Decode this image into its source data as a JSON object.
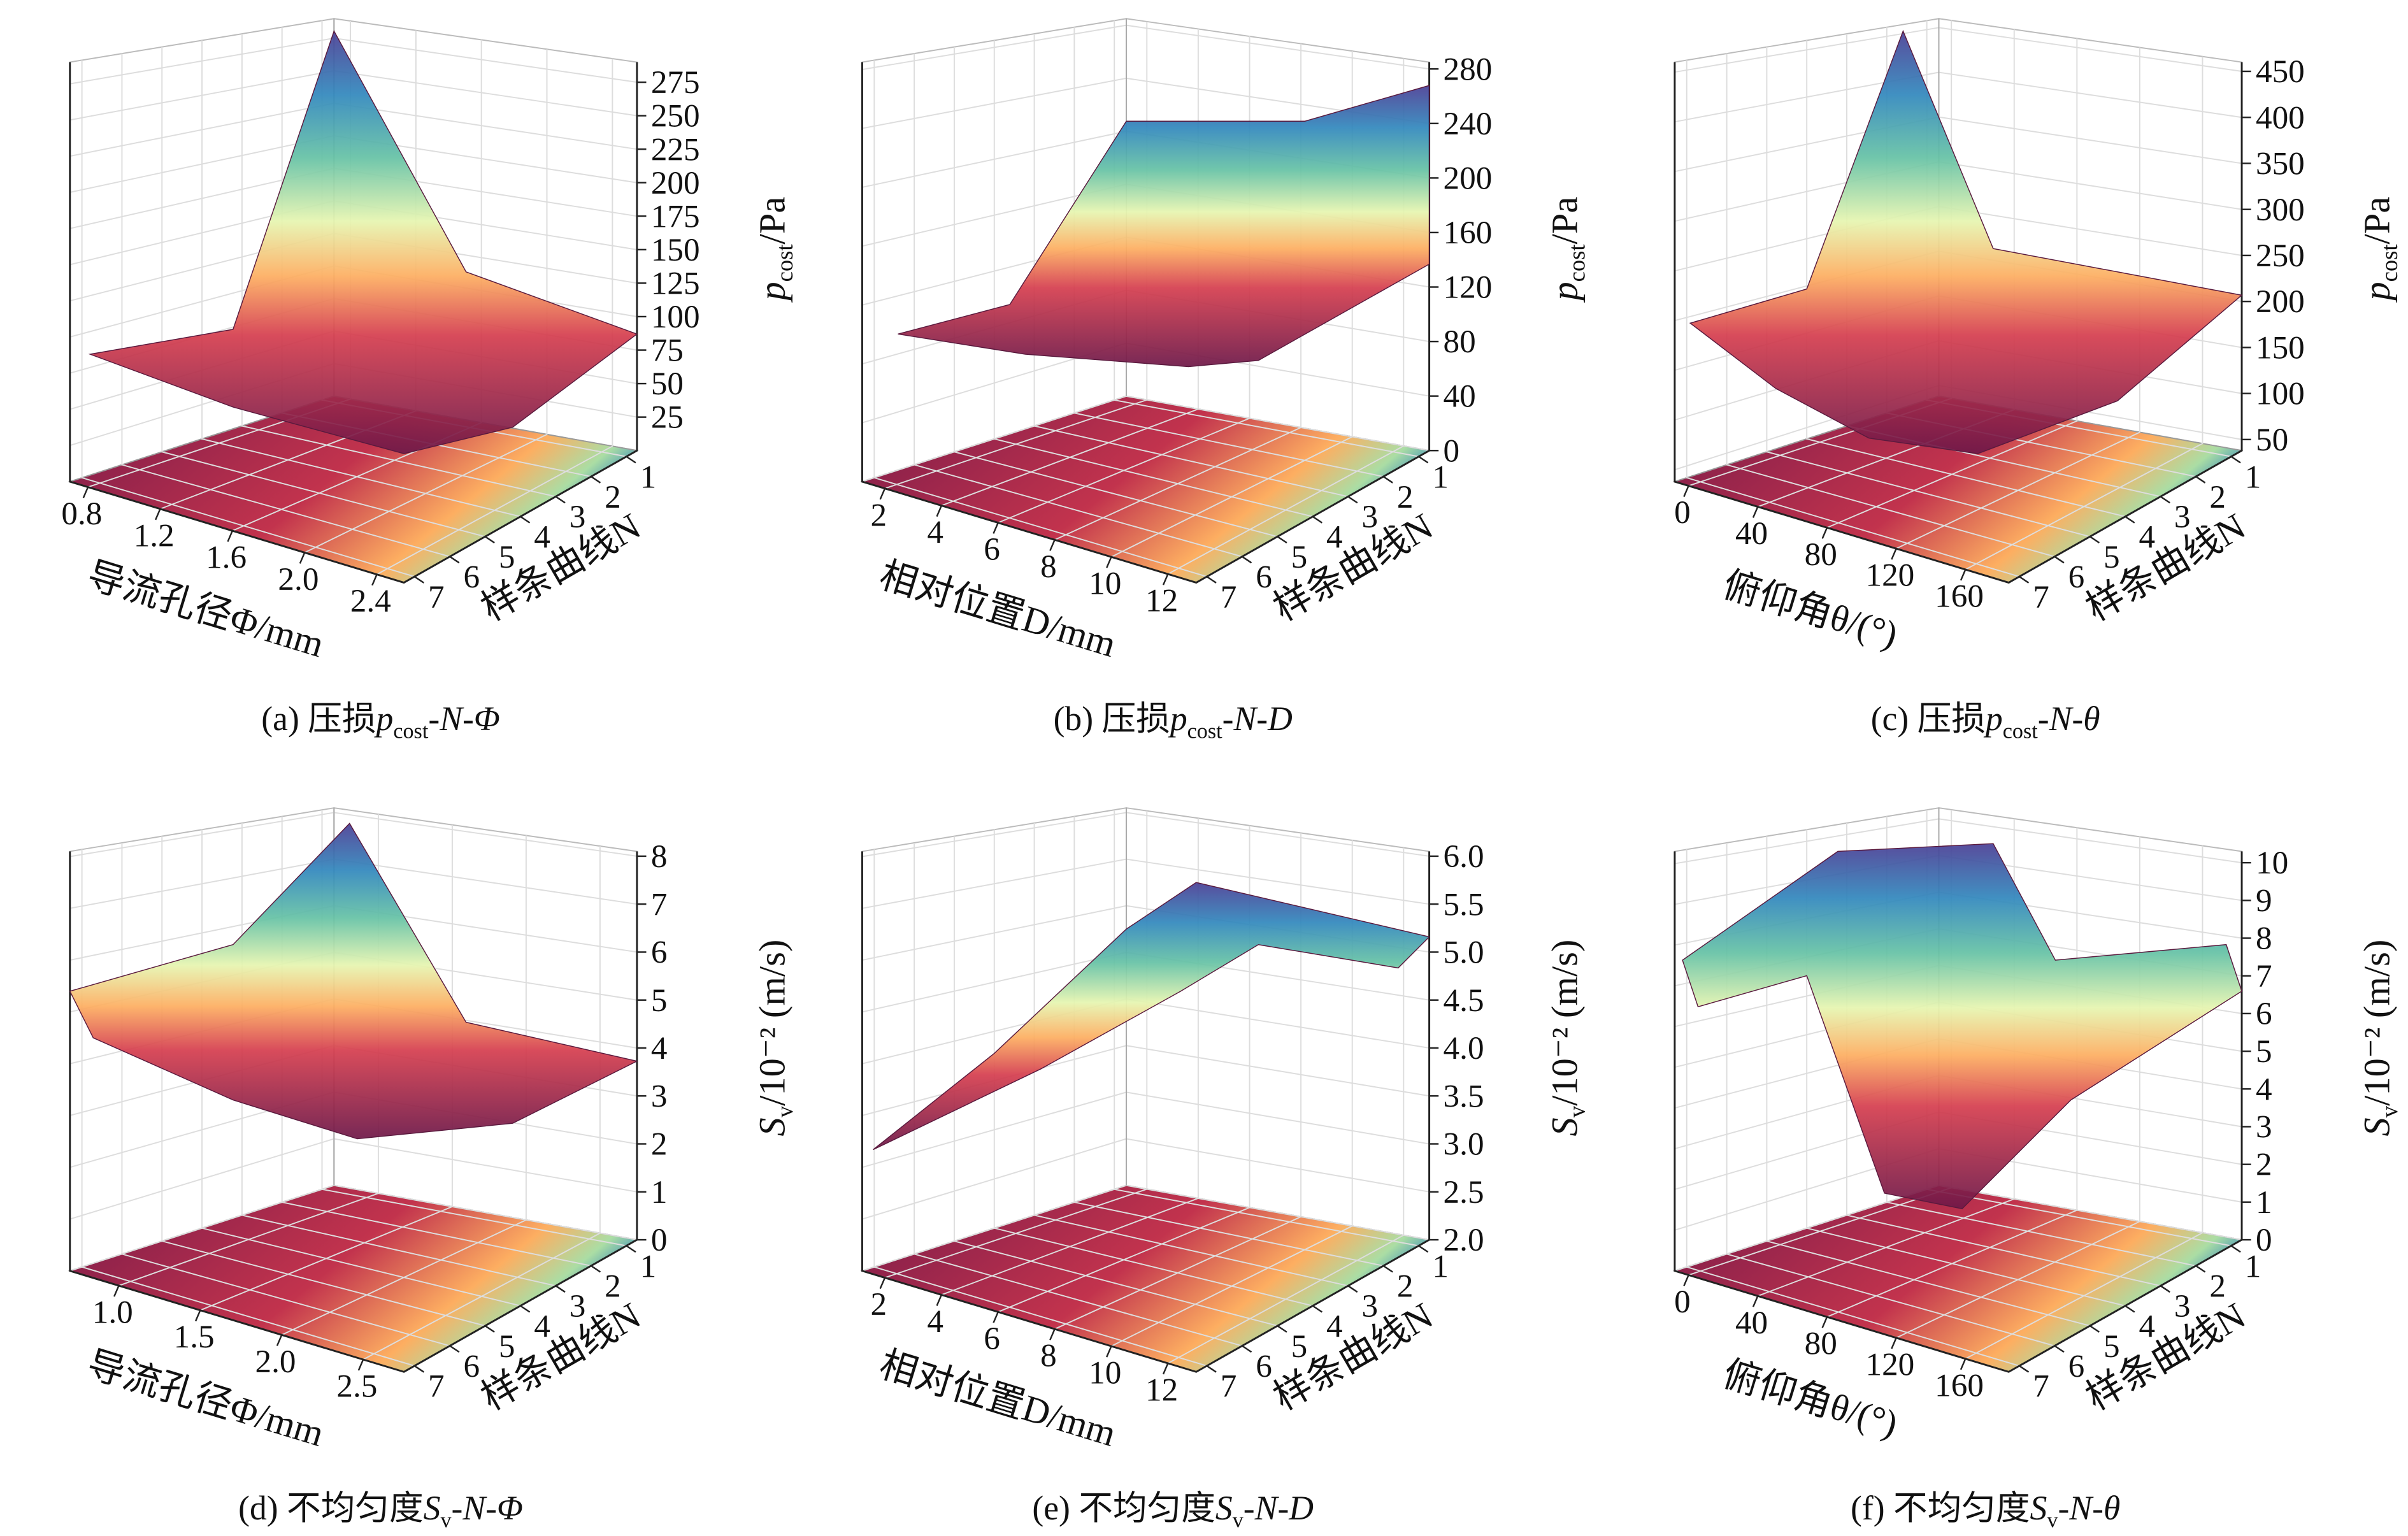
{
  "chart_data": [
    {
      "type": "surface3d",
      "caption": [
        "(a) 压损",
        "p",
        "cost",
        "-N-Φ"
      ],
      "x_label": "导流孔径Φ/mm",
      "y_label": "样条曲线N",
      "z_label": [
        "p",
        "cost",
        "/Pa"
      ],
      "xlim": [
        0.7,
        2.55
      ],
      "xticks": [
        0.8,
        1.2,
        1.6,
        {
          "value": 2,
          "label": "2.0"
        },
        2.4
      ],
      "ylim": [
        7.3,
        0.7
      ],
      "yticks": [
        1,
        2,
        3,
        4,
        5,
        6,
        7
      ],
      "zlim": [
        0,
        290
      ],
      "zticks": [
        25,
        50,
        75,
        100,
        125,
        150,
        175,
        200,
        225,
        250,
        275
      ]
    },
    {
      "type": "surface3d",
      "caption": [
        "(b) 压损",
        "p",
        "cost",
        "-N-D"
      ],
      "x_label": "相对位置D/mm",
      "y_label": "样条曲线N",
      "z_label": [
        "p",
        "cost",
        "/Pa"
      ],
      "xlim": [
        1.2,
        13
      ],
      "xticks": [
        2,
        4,
        6,
        8,
        10,
        12
      ],
      "ylim": [
        7.3,
        0.7
      ],
      "yticks": [
        1,
        2,
        3,
        4,
        5,
        6,
        7
      ],
      "zlim": [
        0,
        285
      ],
      "zticks": [
        0,
        40,
        80,
        120,
        160,
        200,
        240,
        280
      ]
    },
    {
      "type": "surface3d",
      "caption": [
        "(c) 压损",
        "p",
        "cost",
        "-N-θ"
      ],
      "x_label": "俯仰角θ/(°)",
      "y_label": "样条曲线N",
      "z_label": [
        "p",
        "cost",
        "/Pa"
      ],
      "xlim": [
        -8,
        185
      ],
      "xticks": [
        0,
        40,
        80,
        120,
        160
      ],
      "ylim": [
        7.3,
        0.7
      ],
      "yticks": [
        1,
        2,
        3,
        4,
        5,
        6,
        7
      ],
      "zlim": [
        38,
        460
      ],
      "zticks": [
        50,
        100,
        150,
        200,
        250,
        300,
        350,
        400,
        450
      ]
    },
    {
      "type": "surface3d",
      "caption": [
        "(d) 不均匀度",
        "S",
        "v",
        "-N-Φ"
      ],
      "x_label": "导流孔径Φ/mm",
      "y_label": "样条曲线N",
      "z_label": [
        "S",
        "v",
        "/10⁻² (m/s)"
      ],
      "xlim": [
        0.7,
        2.75
      ],
      "xticks": [
        {
          "value": 1,
          "label": "1.0"
        },
        1.5,
        {
          "value": 2,
          "label": "2.0"
        },
        2.5
      ],
      "ylim": [
        7.3,
        0.7
      ],
      "yticks": [
        1,
        2,
        3,
        4,
        5,
        6,
        7
      ],
      "zlim": [
        0,
        8.1
      ],
      "zticks": [
        0,
        1,
        2,
        3,
        4,
        5,
        6,
        7,
        8
      ]
    },
    {
      "type": "surface3d",
      "caption": [
        "(e) 不均匀度",
        "S",
        "v",
        "-N-D"
      ],
      "x_label": "相对位置D/mm",
      "y_label": "样条曲线N",
      "z_label": [
        "S",
        "v",
        "/10⁻² (m/s)"
      ],
      "xlim": [
        1.2,
        13
      ],
      "xticks": [
        2,
        4,
        6,
        8,
        10,
        12
      ],
      "ylim": [
        7.3,
        0.7
      ],
      "yticks": [
        1,
        2,
        3,
        4,
        5,
        6,
        7
      ],
      "zlim": [
        2,
        6.05
      ],
      "zticks": [
        {
          "value": 2,
          "label": "2.0"
        },
        2.5,
        {
          "value": 3,
          "label": "3.0"
        },
        3.5,
        {
          "value": 4,
          "label": "4.0"
        },
        4.5,
        {
          "value": 5,
          "label": "5.0"
        },
        5.5,
        {
          "value": 6,
          "label": "6.0"
        }
      ]
    },
    {
      "type": "surface3d",
      "caption": [
        "(f) 不均匀度",
        "S",
        "v",
        "-N-θ"
      ],
      "x_label": "俯仰角θ/(°)",
      "y_label": "样条曲线N",
      "z_label": [
        "S",
        "v",
        "/10⁻² (m/s)"
      ],
      "xlim": [
        -8,
        185
      ],
      "xticks": [
        0,
        40,
        80,
        120,
        160
      ],
      "ylim": [
        7.3,
        0.7
      ],
      "yticks": [
        1,
        2,
        3,
        4,
        5,
        6,
        7
      ],
      "zlim": [
        0,
        10.3
      ],
      "zticks": [
        0,
        1,
        2,
        3,
        4,
        5,
        6,
        7,
        8,
        9,
        10
      ]
    }
  ]
}
